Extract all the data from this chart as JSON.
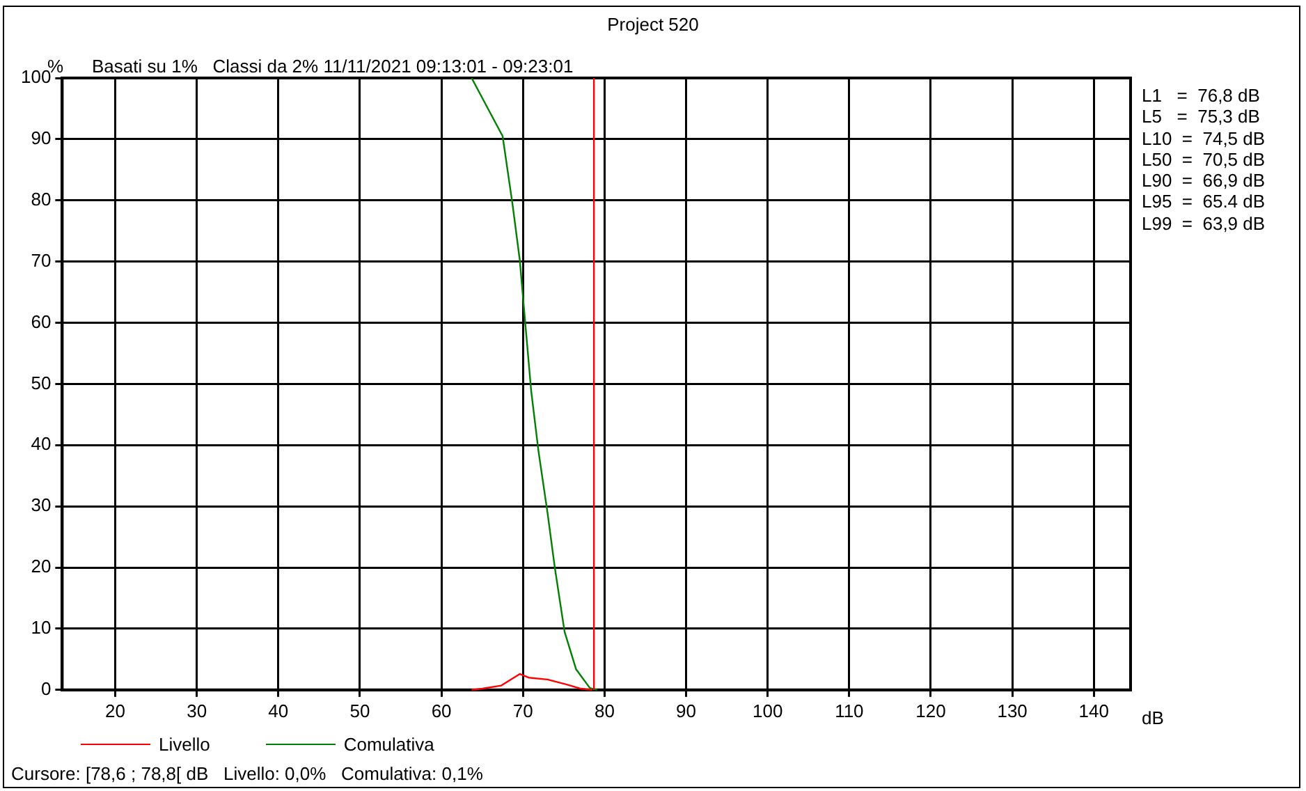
{
  "chart_data": {
    "type": "line",
    "title": "Project 520",
    "subtitle": "Basati su 1%   Classi da 2% 11/11/2021 09:13:01 - 09:23:01",
    "ylabel": "%",
    "xlabel": "dB",
    "xlim": [
      13.5,
      144.5
    ],
    "xticks": [
      20,
      30,
      40,
      50,
      60,
      70,
      80,
      90,
      100,
      110,
      120,
      130,
      140
    ],
    "ylim": [
      0,
      100
    ],
    "yticks": [
      0,
      10,
      20,
      30,
      40,
      50,
      60,
      70,
      80,
      90,
      100
    ],
    "grid": true,
    "legend": "bottom left",
    "marker": "none",
    "line_style": "solid",
    "series": [
      {
        "name": "Livello",
        "color": "#ff0000",
        "x": [
          63.7,
          65,
          67.3,
          69.6,
          70.7,
          73,
          75.3,
          77.1,
          78.5
        ],
        "values": [
          0,
          0.2,
          0.7,
          2.6,
          2,
          1.7,
          0.9,
          0.2,
          0
        ]
      },
      {
        "name": "Comulativa",
        "color": "#008000",
        "x": [
          63.7,
          67.5,
          68.7,
          69.6,
          70.3,
          71,
          71.9,
          73,
          73.9,
          75.1,
          76.5,
          78.2,
          79.1
        ],
        "values": [
          100,
          90.5,
          79.5,
          70.3,
          59.6,
          48.9,
          39,
          29,
          20,
          9.5,
          3.4,
          0.3,
          0
        ]
      }
    ],
    "ref_lines": [
      {
        "axis": "x",
        "value": 78.7,
        "color": "#ff0000"
      }
    ],
    "annotations": [
      "L1   =  76,8 dB",
      "L5   =  75,3 dB",
      "L10  =  74,5 dB",
      "L50  =  70,5 dB",
      "L90  =  66,9 dB",
      "L95  =  65.4 dB",
      "L99  =  63,9 dB",
      "Cursore: [78,6 ; 78,8[ dB   Livello: 0,0%   Comulativa: 0,1%"
    ]
  }
}
